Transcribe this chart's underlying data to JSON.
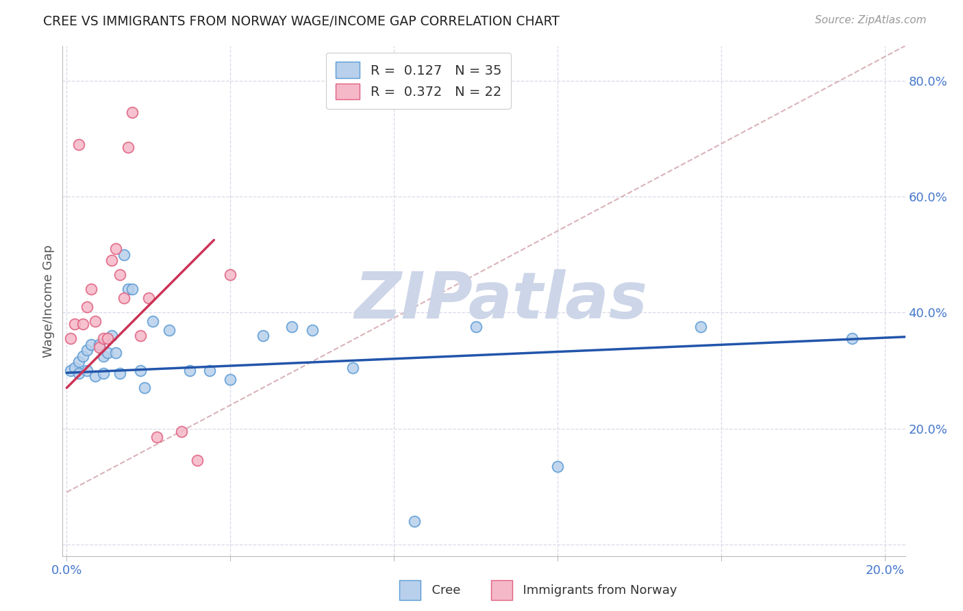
{
  "title": "CREE VS IMMIGRANTS FROM NORWAY WAGE/INCOME GAP CORRELATION CHART",
  "source": "Source: ZipAtlas.com",
  "ylabel": "Wage/Income Gap",
  "xlim": [
    -0.001,
    0.205
  ],
  "ylim": [
    -0.02,
    0.86
  ],
  "xticks": [
    0.0,
    0.04,
    0.08,
    0.12,
    0.16,
    0.2
  ],
  "xticklabels": [
    "0.0%",
    "",
    "",
    "",
    "",
    "20.0%"
  ],
  "yticks_right": [
    0.0,
    0.2,
    0.4,
    0.6,
    0.8
  ],
  "ytick_right_labels": [
    "",
    "20.0%",
    "40.0%",
    "60.0%",
    "80.0%"
  ],
  "legend_r1_val": "0.127",
  "legend_r2_val": "0.372",
  "legend_n1": "35",
  "legend_n2": "22",
  "cree_face_color": "#b8d0eb",
  "cree_edge_color": "#5b9bd5",
  "norway_face_color": "#f5b8c8",
  "norway_edge_color": "#e06080",
  "cree_line_color": "#2255aa",
  "norway_line_color": "#cc3355",
  "ref_line_color": "#d0a0a8",
  "background_color": "#ffffff",
  "grid_color": "#d8d8e8",
  "watermark": "ZIPatlas",
  "watermark_color": "#cdd5e8",
  "label_color": "#4477cc",
  "cree_scatter_x": [
    0.001,
    0.002,
    0.003,
    0.003,
    0.004,
    0.005,
    0.005,
    0.006,
    0.007,
    0.008,
    0.009,
    0.009,
    0.01,
    0.011,
    0.012,
    0.013,
    0.014,
    0.015,
    0.016,
    0.018,
    0.019,
    0.021,
    0.025,
    0.03,
    0.035,
    0.04,
    0.048,
    0.055,
    0.06,
    0.07,
    0.085,
    0.1,
    0.12,
    0.155,
    0.192
  ],
  "cree_scatter_y": [
    0.3,
    0.305,
    0.315,
    0.295,
    0.325,
    0.3,
    0.335,
    0.345,
    0.29,
    0.345,
    0.295,
    0.325,
    0.33,
    0.36,
    0.33,
    0.295,
    0.5,
    0.44,
    0.44,
    0.3,
    0.27,
    0.385,
    0.37,
    0.3,
    0.3,
    0.285,
    0.36,
    0.375,
    0.37,
    0.305,
    0.04,
    0.375,
    0.135,
    0.375,
    0.355
  ],
  "norway_scatter_x": [
    0.001,
    0.002,
    0.003,
    0.004,
    0.005,
    0.006,
    0.007,
    0.008,
    0.009,
    0.01,
    0.011,
    0.012,
    0.013,
    0.014,
    0.015,
    0.016,
    0.018,
    0.02,
    0.022,
    0.028,
    0.032,
    0.04
  ],
  "norway_scatter_y": [
    0.355,
    0.38,
    0.69,
    0.38,
    0.41,
    0.44,
    0.385,
    0.34,
    0.355,
    0.355,
    0.49,
    0.51,
    0.465,
    0.425,
    0.685,
    0.745,
    0.36,
    0.425,
    0.185,
    0.195,
    0.145,
    0.465
  ],
  "cree_line_x": [
    0.0,
    0.205
  ],
  "cree_line_y": [
    0.296,
    0.358
  ],
  "norway_line_x": [
    0.0,
    0.036
  ],
  "norway_line_y": [
    0.27,
    0.525
  ],
  "ref_line_x": [
    0.0,
    0.205
  ],
  "ref_line_y": [
    0.09,
    0.86
  ],
  "spine_color": "#bbbbbb"
}
